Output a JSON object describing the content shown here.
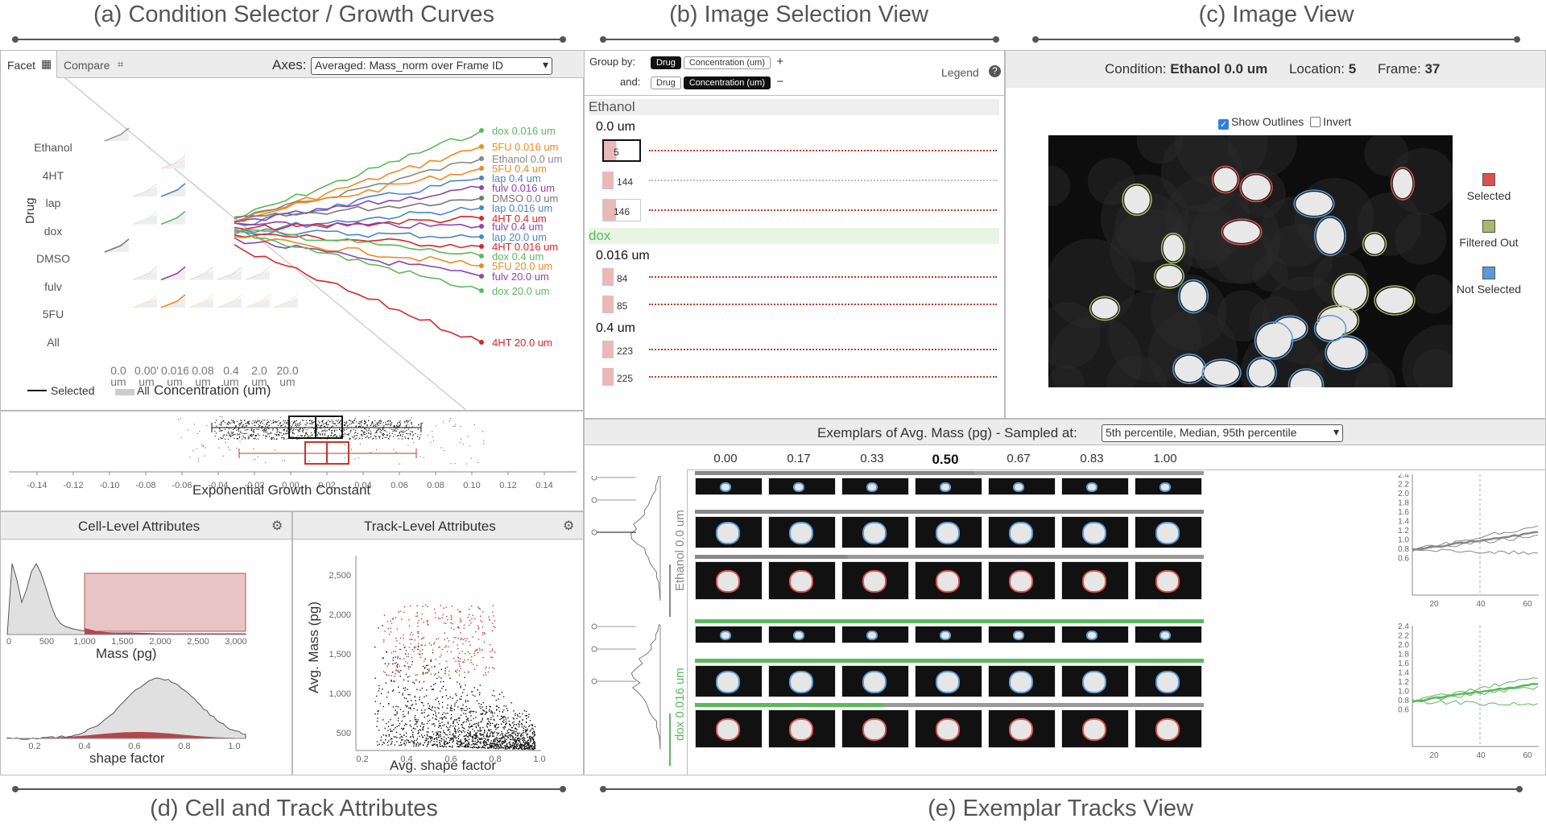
{
  "panels": {
    "a": "(a) Condition Selector / Growth Curves",
    "b": "(b) Image Selection View",
    "c": "(c) Image View",
    "d": "(d) Cell and Track Attributes",
    "e": "(e) Exemplar Tracks View"
  },
  "condition_selector": {
    "tabs": [
      "Facet",
      "Compare"
    ],
    "axes_label": "Axes:",
    "axes_value": "Averaged: Mass_norm over Frame ID",
    "drug_axis_label": "Drug",
    "drugs": [
      "Ethanol",
      "4HT",
      "lap",
      "dox",
      "DMSO",
      "fulv",
      "5FU",
      "All"
    ],
    "concentrations": [
      "0.0 um",
      "0.00' um",
      "0.016 um",
      "0.08 um",
      "0.4 um",
      "2.0 um",
      "20.0 um"
    ],
    "concentration_axis_label": "Concentration (um)",
    "legend_selected": "Selected",
    "legend_all": "All",
    "curves": [
      {
        "label": "dox 0.016 um",
        "color": "#5cb85c"
      },
      {
        "label": "5FU 0.016 um",
        "color": "#f0891e"
      },
      {
        "label": "Ethanol 0.0 um",
        "color": "#888888"
      },
      {
        "label": "5FU 0.4 um",
        "color": "#f0891e"
      },
      {
        "label": "lap 0.4 um",
        "color": "#4a86c8"
      },
      {
        "label": "fulv 0.016 um",
        "color": "#8e44ad"
      },
      {
        "label": "DMSO 0.0 um",
        "color": "#777777"
      },
      {
        "label": "lap 0.016 um",
        "color": "#4a86c8"
      },
      {
        "label": "4HT 0.4 um",
        "color": "#d62728"
      },
      {
        "label": "fulv 0.4 um",
        "color": "#8e44ad"
      },
      {
        "label": "lap 20.0 um",
        "color": "#4a86c8"
      },
      {
        "label": "4HT 0.016 um",
        "color": "#d62728"
      },
      {
        "label": "dox 0.4 um",
        "color": "#5cb85c"
      },
      {
        "label": "5FU 20.0 um",
        "color": "#f0891e"
      },
      {
        "label": "fulv 20.0 um",
        "color": "#8e44ad"
      },
      {
        "label": "dox 20.0 um",
        "color": "#5cb85c"
      },
      {
        "label": "4HT 20.0 um",
        "color": "#d62728"
      }
    ],
    "growth_axis_label": "Exponential Growth Constant",
    "growth_ticks": [
      "-0.14",
      "-0.12",
      "-0.10",
      "-0.08",
      "-0.06",
      "-0.04",
      "-0.02",
      "0.00",
      "0.02",
      "0.04",
      "0.06",
      "0.08",
      "0.10",
      "0.12",
      "0.14"
    ]
  },
  "image_selection": {
    "group_by_label": "Group by:",
    "and_label": "and:",
    "chips_row1": [
      "Drug",
      "Concentration (um)"
    ],
    "chips_row2": [
      "Drug",
      "Concentration (um)"
    ],
    "plus": "+",
    "minus": "−",
    "legend_label": "Legend",
    "groups": [
      {
        "name": "Ethanol",
        "color": "#555555",
        "sub": [
          {
            "conc": "0.0 um",
            "rows": [
              "5",
              "144",
              "146"
            ]
          }
        ]
      },
      {
        "name": "dox",
        "color": "#5cb85c",
        "sub": [
          {
            "conc": "0.016 um",
            "rows": [
              "84",
              "85"
            ]
          },
          {
            "conc": "0.4 um",
            "rows": [
              "223",
              "225"
            ]
          }
        ]
      }
    ]
  },
  "image_view": {
    "condition_label": "Condition:",
    "condition_value": "Ethanol 0.0 um",
    "location_label": "Location:",
    "location_value": "5",
    "frame_label": "Frame:",
    "frame_value": "37",
    "show_outlines": "Show Outlines",
    "invert": "Invert",
    "legend": [
      {
        "label": "Selected",
        "color": "#d9534f"
      },
      {
        "label": "Filtered Out",
        "color": "#a7b96a"
      },
      {
        "label": "Not Selected",
        "color": "#5b9bd5"
      }
    ]
  },
  "attributes": {
    "cell_title": "Cell-Level Attributes",
    "track_title": "Track-Level Attributes",
    "mass_label": "Mass (pg)",
    "mass_ticks": [
      "0",
      "500",
      "1,000",
      "1,500",
      "2,000",
      "2,500",
      "3,000"
    ],
    "shape_label": "shape factor",
    "shape_ticks": [
      "0.2",
      "0.4",
      "0.6",
      "0.8",
      "1.0"
    ],
    "scatter_y_label": "Avg. Mass (pg)",
    "scatter_x_label": "Avg. shape factor",
    "scatter_y_ticks": [
      "2,500",
      "2,000",
      "1,500",
      "1,000",
      "500"
    ],
    "scatter_x_ticks": [
      "0.2",
      "0.4",
      "0.6",
      "0.8",
      "1.0"
    ]
  },
  "exemplars": {
    "header": "Exemplars of Avg. Mass (pg) - Sampled at:",
    "sampled_value": "5th percentile, Median, 95th percentile",
    "time_ticks": [
      "0.00",
      "0.17",
      "0.33",
      "0.50",
      "0.67",
      "0.83",
      "1.00"
    ],
    "group1_label": "Ethanol 0.0 um",
    "group2_label": "dox 0.016 um",
    "chart1_y": [
      "2.4",
      "2.2",
      "2.0",
      "1.8",
      "1.6",
      "1.4",
      "1.2",
      "1.0",
      "0.8",
      "0.6"
    ],
    "chart1_x": [
      "20",
      "40",
      "60"
    ],
    "chart2_y": [
      "2.4",
      "2.2",
      "2.0",
      "1.8",
      "1.6",
      "1.4",
      "1.2",
      "1.0",
      "0.8",
      "0.6"
    ],
    "chart2_x": [
      "20",
      "40",
      "60"
    ]
  }
}
